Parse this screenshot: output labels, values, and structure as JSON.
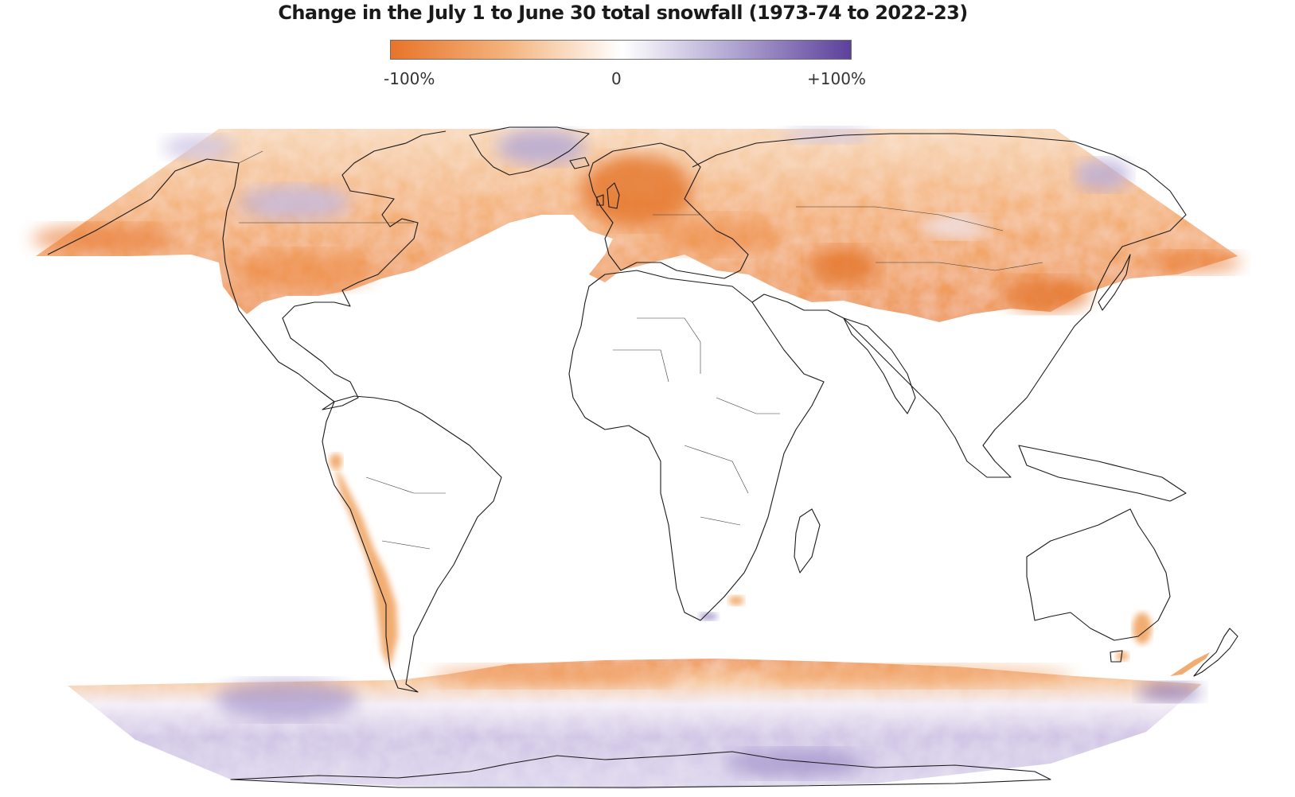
{
  "title": "Change in the July 1 to June 30 total snowfall (1973-74 to 2022-23)",
  "legend": {
    "min_label": "-100%",
    "mid_label": "0",
    "max_label": "+100%",
    "color_decrease": "#e8742a",
    "color_neutral": "#ffffff",
    "color_increase": "#5b3f9a"
  },
  "map_data": {
    "type": "choropleth-world",
    "projection": "robinson",
    "value_range": [
      -100,
      100
    ],
    "unit": "%",
    "regions": [
      {
        "name": "western-europe",
        "trend": "strong-decrease"
      },
      {
        "name": "north-america-midlatitudes",
        "trend": "decrease"
      },
      {
        "name": "central-asia",
        "trend": "decrease"
      },
      {
        "name": "east-asia",
        "trend": "decrease"
      },
      {
        "name": "canadian-arctic",
        "trend": "mixed-increase"
      },
      {
        "name": "andes",
        "trend": "decrease"
      },
      {
        "name": "southern-ocean-margin",
        "trend": "decrease"
      },
      {
        "name": "antarctica-interior",
        "trend": "increase"
      }
    ]
  }
}
